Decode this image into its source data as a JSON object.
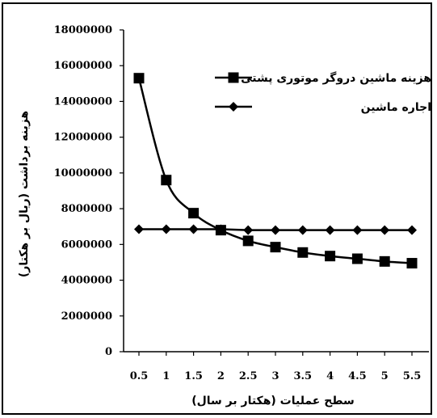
{
  "chart_data": {
    "type": "line",
    "x": [
      "0.5",
      "1",
      "1.5",
      "2",
      "2.5",
      "3",
      "3.5",
      "4",
      "4.5",
      "5",
      "5.5"
    ],
    "series": [
      {
        "name": "هزینه ماشین دروگر موتوری پشتی",
        "marker": "square",
        "values": [
          15300000,
          9600000,
          7750000,
          6800000,
          6200000,
          5850000,
          5550000,
          5350000,
          5200000,
          5050000,
          4950000
        ]
      },
      {
        "name": "اجاره ماشین",
        "marker": "diamond",
        "values": [
          6850000,
          6850000,
          6850000,
          6850000,
          6800000,
          6800000,
          6800000,
          6800000,
          6800000,
          6800000,
          6800000
        ]
      }
    ],
    "xlabel": "سطح عملیات (هکتار بر سال)",
    "ylabel": "هزینه برداشت (ریال بر هکتار)",
    "ylim": [
      0,
      18000000
    ],
    "yticks": [
      "0",
      "2000000",
      "4000000",
      "6000000",
      "8000000",
      "10000000",
      "12000000",
      "14000000",
      "16000000",
      "18000000"
    ],
    "legend_position": "top-right",
    "grid": false,
    "line_color": "#000000"
  }
}
